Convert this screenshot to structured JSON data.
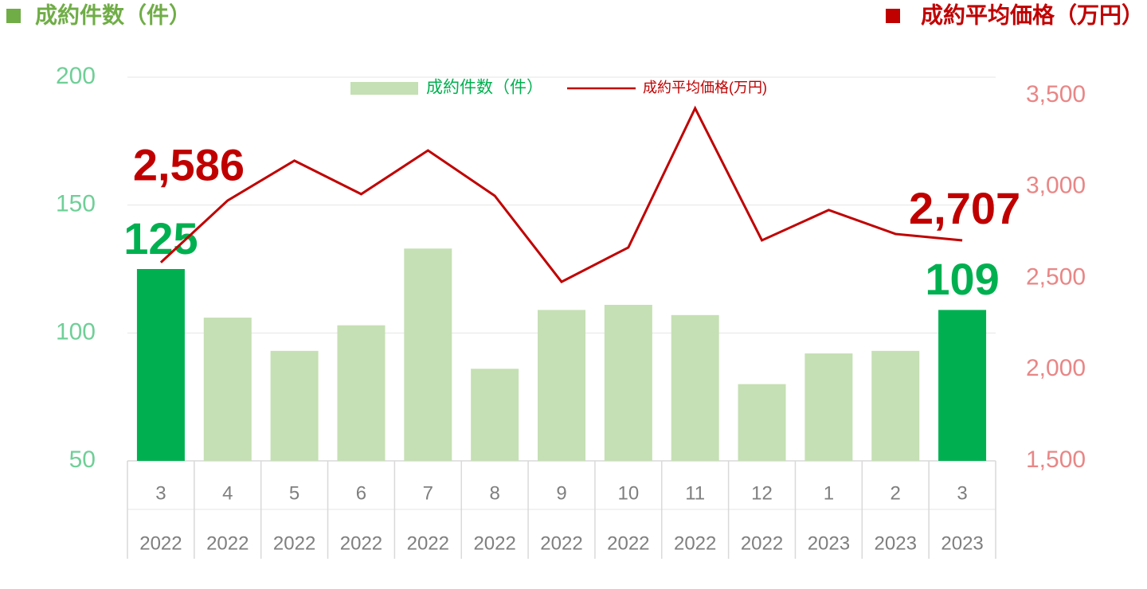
{
  "chart_data": {
    "type": "bar-line",
    "left_header": "成約件数（件）",
    "right_header": "成約平均価格（万円）",
    "categories": [
      "3",
      "4",
      "5",
      "6",
      "7",
      "8",
      "9",
      "10",
      "11",
      "12",
      "1",
      "2",
      "3"
    ],
    "category_years": [
      "2022",
      "2022",
      "2022",
      "2022",
      "2022",
      "2022",
      "2022",
      "2022",
      "2022",
      "2022",
      "2023",
      "2023",
      "2023"
    ],
    "ylim": [
      50,
      200
    ],
    "yticks": [
      50,
      100,
      150,
      200
    ],
    "y2lim": [
      1500,
      3600
    ],
    "y2ticks": [
      {
        "value": 1500,
        "label": "1,500"
      },
      {
        "value": 2000,
        "label": "2,000"
      },
      {
        "value": 2500,
        "label": "2,500"
      },
      {
        "value": 3000,
        "label": "3,000"
      },
      {
        "value": 3500,
        "label": "3,500"
      }
    ],
    "grid": true,
    "series": [
      {
        "name": "成約件数（件）",
        "type": "bar",
        "color": "#c5e0b4",
        "colors": [
          "#00b050",
          "#c5e0b4",
          "#c5e0b4",
          "#c5e0b4",
          "#c5e0b4",
          "#c5e0b4",
          "#c5e0b4",
          "#c5e0b4",
          "#c5e0b4",
          "#c5e0b4",
          "#c5e0b4",
          "#c5e0b4",
          "#00b050"
        ],
        "values": [
          125,
          106,
          93,
          103,
          133,
          86,
          109,
          111,
          107,
          80,
          92,
          93,
          109
        ],
        "value_labels": [
          "125",
          null,
          null,
          null,
          null,
          null,
          null,
          null,
          null,
          null,
          null,
          null,
          "109"
        ]
      },
      {
        "name": "成約平均価格(万円)",
        "type": "line",
        "axis": "y2",
        "color": "#c00000",
        "values": [
          2586,
          2925,
          3143,
          2960,
          3199,
          2951,
          2480,
          2668,
          3430,
          2707,
          2873,
          2742,
          2707
        ],
        "value_labels": [
          "2,586",
          null,
          null,
          null,
          null,
          null,
          null,
          null,
          null,
          null,
          null,
          null,
          "2,707"
        ]
      }
    ]
  }
}
